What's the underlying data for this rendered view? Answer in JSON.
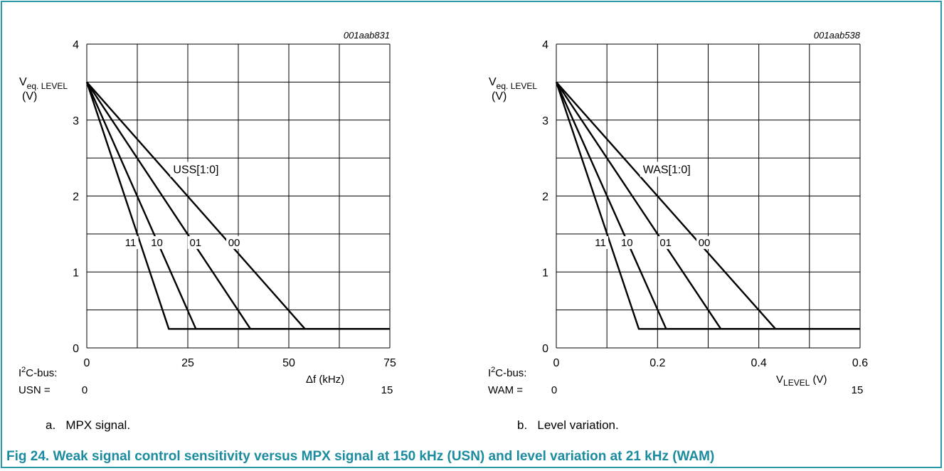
{
  "figure": {
    "title": "Fig 24. Weak signal control sensitivity versus MPX signal at 150 kHz (USN) and level variation at 21 kHz (WAM)",
    "colors": {
      "border": "#2a99a8",
      "title": "#1b8ba0",
      "grid": "#000000"
    }
  },
  "chart_data": [
    {
      "type": "line",
      "caption_prefix": "a.",
      "caption": "MPX signal.",
      "code": "001aab831",
      "ylabel_main": "V",
      "ylabel_sub": "eq. LEVEL",
      "ylabel_unit": "(V)",
      "xlabel_main": "Δf (kHz)",
      "xlabel_sub": "",
      "xlabel_unit": "",
      "xlim": [
        0,
        75
      ],
      "ylim": [
        0,
        4
      ],
      "xticks": [
        0,
        25,
        50,
        75
      ],
      "xtick_labels": [
        "0",
        "25",
        "50",
        "75"
      ],
      "yticks": [
        0,
        1,
        2,
        3,
        4
      ],
      "ytick_labels": [
        "0",
        "1",
        "2",
        "3",
        "4"
      ],
      "grid_x_step": 12.5,
      "grid_y_step": 0.5,
      "grid": true,
      "register_label": "USS[1:0]",
      "bus_label_line1": "I",
      "bus_label_sup": "2",
      "bus_label_line1_rest": "C-bus:",
      "bus_field": "USN =",
      "bus_min": "0",
      "bus_max": "15",
      "floor_end_x": 75,
      "series": [
        {
          "name": "11",
          "x": [
            0,
            20.3,
            75
          ],
          "y": [
            3.5,
            0.25,
            0.25
          ]
        },
        {
          "name": "10",
          "x": [
            0,
            27,
            75
          ],
          "y": [
            3.5,
            0.25,
            0.25
          ]
        },
        {
          "name": "01",
          "x": [
            0,
            40.5,
            75
          ],
          "y": [
            3.5,
            0.25,
            0.25
          ]
        },
        {
          "name": "00",
          "x": [
            0,
            54,
            75
          ],
          "y": [
            3.5,
            0.25,
            0.25
          ]
        }
      ],
      "series_label_y": 1.2
    },
    {
      "type": "line",
      "caption_prefix": "b.",
      "caption": "Level variation.",
      "code": "001aab538",
      "ylabel_main": "V",
      "ylabel_sub": "eq. LEVEL",
      "ylabel_unit": "(V)",
      "xlabel_main": "V",
      "xlabel_sub": "LEVEL",
      "xlabel_unit": "(V)",
      "xlim": [
        0,
        0.6
      ],
      "ylim": [
        0,
        4
      ],
      "xticks": [
        0,
        0.2,
        0.4,
        0.6
      ],
      "xtick_labels": [
        "0",
        "0.2",
        "0.4",
        "0.6"
      ],
      "yticks": [
        0,
        1,
        2,
        3,
        4
      ],
      "ytick_labels": [
        "0",
        "1",
        "2",
        "3",
        "4"
      ],
      "grid_x_step": 0.1,
      "grid_y_step": 0.5,
      "grid": true,
      "register_label": "WAS[1:0]",
      "bus_label_line1": "I",
      "bus_label_sup": "2",
      "bus_label_line1_rest": "C-bus:",
      "bus_field": "WAM =",
      "bus_min": "0",
      "bus_max": "15",
      "floor_end_x": 0.6,
      "series": [
        {
          "name": "11",
          "x": [
            0,
            0.163,
            0.6
          ],
          "y": [
            3.5,
            0.25,
            0.25
          ]
        },
        {
          "name": "10",
          "x": [
            0,
            0.217,
            0.6
          ],
          "y": [
            3.5,
            0.25,
            0.25
          ]
        },
        {
          "name": "01",
          "x": [
            0,
            0.325,
            0.6
          ],
          "y": [
            3.5,
            0.25,
            0.25
          ]
        },
        {
          "name": "00",
          "x": [
            0,
            0.433,
            0.6
          ],
          "y": [
            3.5,
            0.25,
            0.25
          ]
        }
      ],
      "series_label_y": 1.2
    }
  ]
}
